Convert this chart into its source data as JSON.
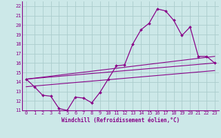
{
  "xlabel": "Windchill (Refroidissement éolien,°C)",
  "bg_color": "#cce8e8",
  "line_color": "#880088",
  "grid_color": "#aacccc",
  "spine_color": "#880088",
  "ylim": [
    11,
    22.5
  ],
  "xlim": [
    -0.5,
    23.5
  ],
  "yticks": [
    11,
    12,
    13,
    14,
    15,
    16,
    17,
    18,
    19,
    20,
    21,
    22
  ],
  "xticks": [
    0,
    1,
    2,
    3,
    4,
    5,
    6,
    7,
    8,
    9,
    10,
    11,
    12,
    13,
    14,
    15,
    16,
    17,
    18,
    19,
    20,
    21,
    22,
    23
  ],
  "main_line": [
    14.3,
    13.5,
    12.6,
    12.5,
    11.2,
    11.0,
    12.4,
    12.3,
    11.8,
    12.9,
    14.3,
    15.7,
    15.8,
    18.0,
    19.5,
    20.2,
    21.7,
    21.5,
    20.5,
    18.9,
    19.8,
    16.7,
    16.7,
    16.0
  ],
  "trend1_x": [
    0,
    23
  ],
  "trend1_y": [
    14.3,
    16.0
  ],
  "trend2_x": [
    0,
    23
  ],
  "trend2_y": [
    13.5,
    15.2
  ],
  "trend3_x": [
    0,
    23
  ],
  "trend3_y": [
    14.3,
    16.7
  ],
  "tick_fontsize": 5.0,
  "xlabel_fontsize": 5.5
}
